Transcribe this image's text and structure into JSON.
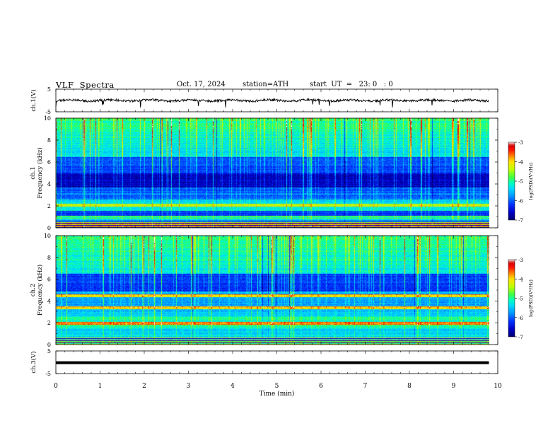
{
  "header": {
    "title": "VLF  Spectra",
    "date": "Oct. 17, 2024",
    "station": "station=ATH",
    "start": "start  UT  =   23: 0   : 0"
  },
  "colorbar": {
    "label": "log(PSD)(V²/Hz)",
    "ticks": [
      "-3",
      "-4",
      "-5",
      "-6",
      "-7"
    ],
    "colors": [
      "#00008f",
      "#0000ff",
      "#0066ff",
      "#00c8ff",
      "#00ffcc",
      "#33ff33",
      "#ccff00",
      "#ffff00",
      "#ff8800",
      "#ff0000",
      "#cc0000",
      "#ffffff"
    ]
  },
  "chart_data": [
    {
      "type": "line",
      "id": "ch1-waveform",
      "ylabel": "ch.1(V)",
      "ylim": [
        -5,
        5
      ],
      "yticks": [
        "5",
        "-5"
      ],
      "xlim": [
        0,
        10
      ],
      "series": [
        {
          "x": [
            0,
            9.8
          ],
          "y": [
            0,
            0
          ]
        }
      ]
    },
    {
      "type": "heatmap",
      "id": "ch1-spectrogram",
      "ylabel": "ch.1\nFrequency (kHz)",
      "ylabel_line1": "ch.1",
      "ylabel_line2": "Frequency (kHz)",
      "ylim": [
        0,
        10
      ],
      "yticks": [
        "0",
        "2",
        "4",
        "6",
        "8",
        "10"
      ],
      "xlim": [
        0,
        10
      ],
      "data_extent_min": 9.8,
      "bands_khz": [
        {
          "f": 2.1,
          "level": -4.6
        },
        {
          "f": 1.0,
          "level": -5.2
        },
        {
          "f": 0.3,
          "level": -4.0
        }
      ]
    },
    {
      "type": "heatmap",
      "id": "ch2-spectrogram",
      "ylabel": "ch.2\nFrequency (kHz)",
      "ylabel_line1": "ch.2",
      "ylabel_line2": "Frequency (kHz)",
      "ylim": [
        0,
        10
      ],
      "yticks": [
        "0",
        "2",
        "4",
        "6",
        "8",
        "10"
      ],
      "xlim": [
        0,
        10
      ],
      "data_extent_min": 9.8,
      "bands_khz": [
        {
          "f": 2.0,
          "level": -4.0
        },
        {
          "f": 3.4,
          "level": -4.2
        },
        {
          "f": 4.5,
          "level": -4.3
        }
      ]
    },
    {
      "type": "line",
      "id": "ch3-waveform",
      "ylabel": "ch.3(V)",
      "ylim": [
        -5,
        5
      ],
      "yticks": [
        "5",
        "-5"
      ],
      "xlabel": "Time  (min)",
      "xlim": [
        0,
        10
      ],
      "xticks": [
        "0",
        "1",
        "2",
        "3",
        "4",
        "5",
        "6",
        "7",
        "8",
        "9",
        "10"
      ],
      "series": [
        {
          "x": [
            0,
            9.8
          ],
          "y": [
            -0.2,
            -0.2
          ]
        }
      ]
    }
  ]
}
